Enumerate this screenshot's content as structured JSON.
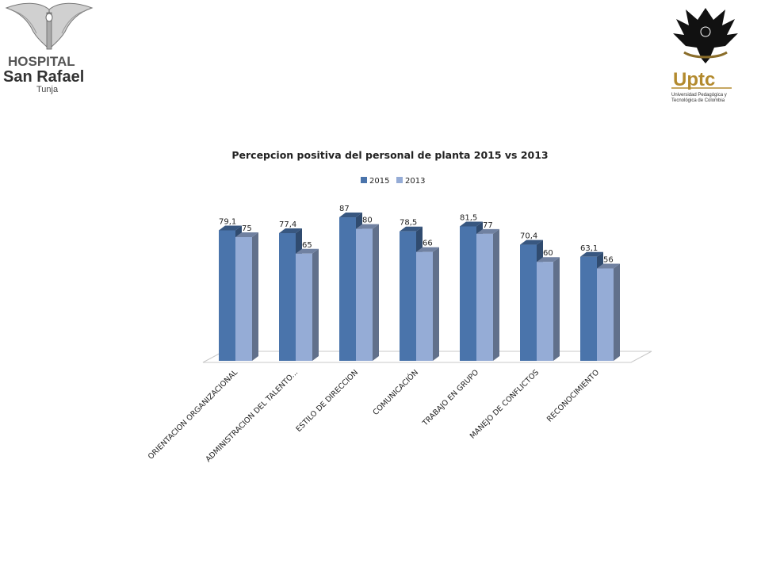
{
  "logos": {
    "left": {
      "line1": "HOSPITAL",
      "line2": "San Rafael",
      "line3": "Tunja",
      "icon": "winged-caduceus-icon"
    },
    "right": {
      "brand": "Uptc",
      "sub1": "Universidad Pedagógica y",
      "sub2": "Tecnológica de Colombia",
      "motto": "",
      "icon": "eagle-crest-icon"
    }
  },
  "colors": {
    "series2015": "#4a74ab",
    "series2013": "#95acd6",
    "title": "#222222"
  },
  "chart_data": {
    "type": "bar",
    "title": "Percepcion positiva del personal de planta 2015 vs 2013",
    "legend_position": "top-center",
    "grid": false,
    "xlabel": "",
    "ylabel": "",
    "ylim": [
      0,
      100
    ],
    "categories": [
      "ORIENTACION ORGANIZACIONAL",
      "ADMINISTRACION DEL TALENTO...",
      "ESTILO DE DIRECCION",
      "COMUNICACIÓN",
      "TRABAJO EN GRUPO",
      "MANEJO DE CONFLICTOS",
      "RECONOCIMIENTO"
    ],
    "series": [
      {
        "name": "2015",
        "values": [
          79.1,
          77.4,
          87,
          78.5,
          81.5,
          70.4,
          63.1
        ],
        "labels": [
          "79,1",
          "77,4",
          "87",
          "78,5",
          "81,5",
          "70,4",
          "63,1"
        ]
      },
      {
        "name": "2013",
        "values": [
          75,
          65,
          80,
          66,
          77,
          60,
          56
        ],
        "labels": [
          "75",
          "65",
          "80",
          "66",
          "77",
          "60",
          "56"
        ]
      }
    ]
  }
}
